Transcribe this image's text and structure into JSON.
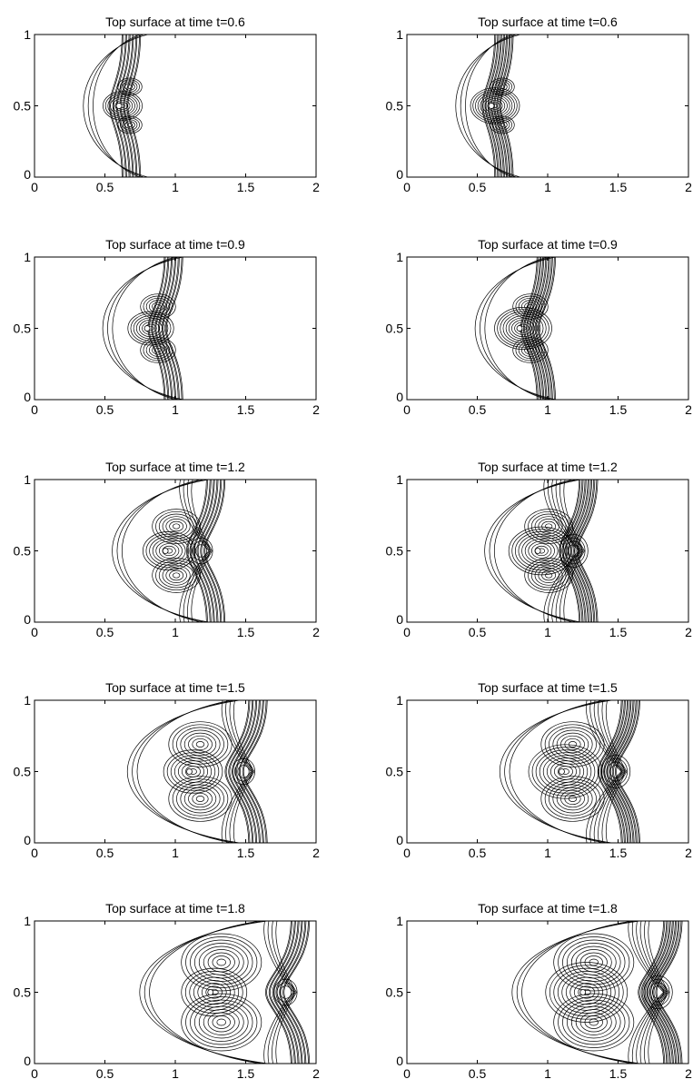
{
  "chart_data": [
    {
      "type": "contour",
      "title": "Top surface at time t=0.6",
      "xlim": [
        0,
        2
      ],
      "ylim": [
        0,
        1
      ],
      "xticks": [
        "0",
        "0.5",
        "1",
        "1.5",
        "2"
      ],
      "yticks": [
        "0",
        "0.5",
        "1"
      ],
      "front_x": 0.7,
      "source_x": 0.6,
      "column": "left",
      "row": 1
    },
    {
      "type": "contour",
      "title": "Top surface at time t=0.6",
      "xlim": [
        0,
        2
      ],
      "ylim": [
        0,
        1
      ],
      "xticks": [
        "0",
        "0.5",
        "1",
        "1.5",
        "2"
      ],
      "yticks": [
        "0",
        "0.5",
        "1"
      ],
      "front_x": 0.7,
      "source_x": 0.6,
      "column": "right",
      "row": 1
    },
    {
      "type": "contour",
      "title": "Top surface at time t=0.9",
      "xlim": [
        0,
        2
      ],
      "ylim": [
        0,
        1
      ],
      "xticks": [
        "0",
        "0.5",
        "1",
        "1.5",
        "2"
      ],
      "yticks": [
        "0",
        "0.5",
        "1"
      ],
      "front_x": 1.0,
      "source_x": 0.8,
      "column": "left",
      "row": 2
    },
    {
      "type": "contour",
      "title": "Top surface at time t=0.9",
      "xlim": [
        0,
        2
      ],
      "ylim": [
        0,
        1
      ],
      "xticks": [
        "0",
        "0.5",
        "1",
        "1.5",
        "2"
      ],
      "yticks": [
        "0",
        "0.5",
        "1"
      ],
      "front_x": 1.0,
      "source_x": 0.8,
      "column": "right",
      "row": 2
    },
    {
      "type": "contour",
      "title": "Top surface at time t=1.2",
      "xlim": [
        0,
        2
      ],
      "ylim": [
        0,
        1
      ],
      "xticks": [
        "0",
        "0.5",
        "1",
        "1.5",
        "2"
      ],
      "yticks": [
        "0",
        "0.5",
        "1"
      ],
      "front_x": 1.3,
      "source_x": 0.93,
      "column": "left",
      "row": 3
    },
    {
      "type": "contour",
      "title": "Top surface at time t=1.2",
      "xlim": [
        0,
        2
      ],
      "ylim": [
        0,
        1
      ],
      "xticks": [
        "0",
        "0.5",
        "1",
        "1.5",
        "2"
      ],
      "yticks": [
        "0",
        "0.5",
        "1"
      ],
      "front_x": 1.3,
      "source_x": 0.93,
      "column": "right",
      "row": 3
    },
    {
      "type": "contour",
      "title": "Top surface at time t=1.5",
      "xlim": [
        0,
        2
      ],
      "ylim": [
        0,
        1
      ],
      "xticks": [
        "0",
        "0.5",
        "1",
        "1.5",
        "2"
      ],
      "yticks": [
        "0",
        "0.5",
        "1"
      ],
      "front_x": 1.6,
      "source_x": 1.1,
      "column": "left",
      "row": 4
    },
    {
      "type": "contour",
      "title": "Top surface at time t=1.5",
      "xlim": [
        0,
        2
      ],
      "ylim": [
        0,
        1
      ],
      "xticks": [
        "0",
        "0.5",
        "1",
        "1.5",
        "2"
      ],
      "yticks": [
        "0",
        "0.5",
        "1"
      ],
      "front_x": 1.6,
      "source_x": 1.1,
      "column": "right",
      "row": 4
    },
    {
      "type": "contour",
      "title": "Top surface at time t=1.8",
      "xlim": [
        0,
        2
      ],
      "ylim": [
        0,
        1
      ],
      "xticks": [
        "0",
        "0.5",
        "1",
        "1.5",
        "2"
      ],
      "yticks": [
        "0",
        "0.5",
        "1"
      ],
      "front_x": 1.9,
      "source_x": 1.25,
      "column": "left",
      "row": 5
    },
    {
      "type": "contour",
      "title": "Top surface at time t=1.8",
      "xlim": [
        0,
        2
      ],
      "ylim": [
        0,
        1
      ],
      "xticks": [
        "0",
        "0.5",
        "1",
        "1.5",
        "2"
      ],
      "yticks": [
        "0",
        "0.5",
        "1"
      ],
      "front_x": 1.9,
      "source_x": 1.25,
      "column": "right",
      "row": 5
    }
  ]
}
